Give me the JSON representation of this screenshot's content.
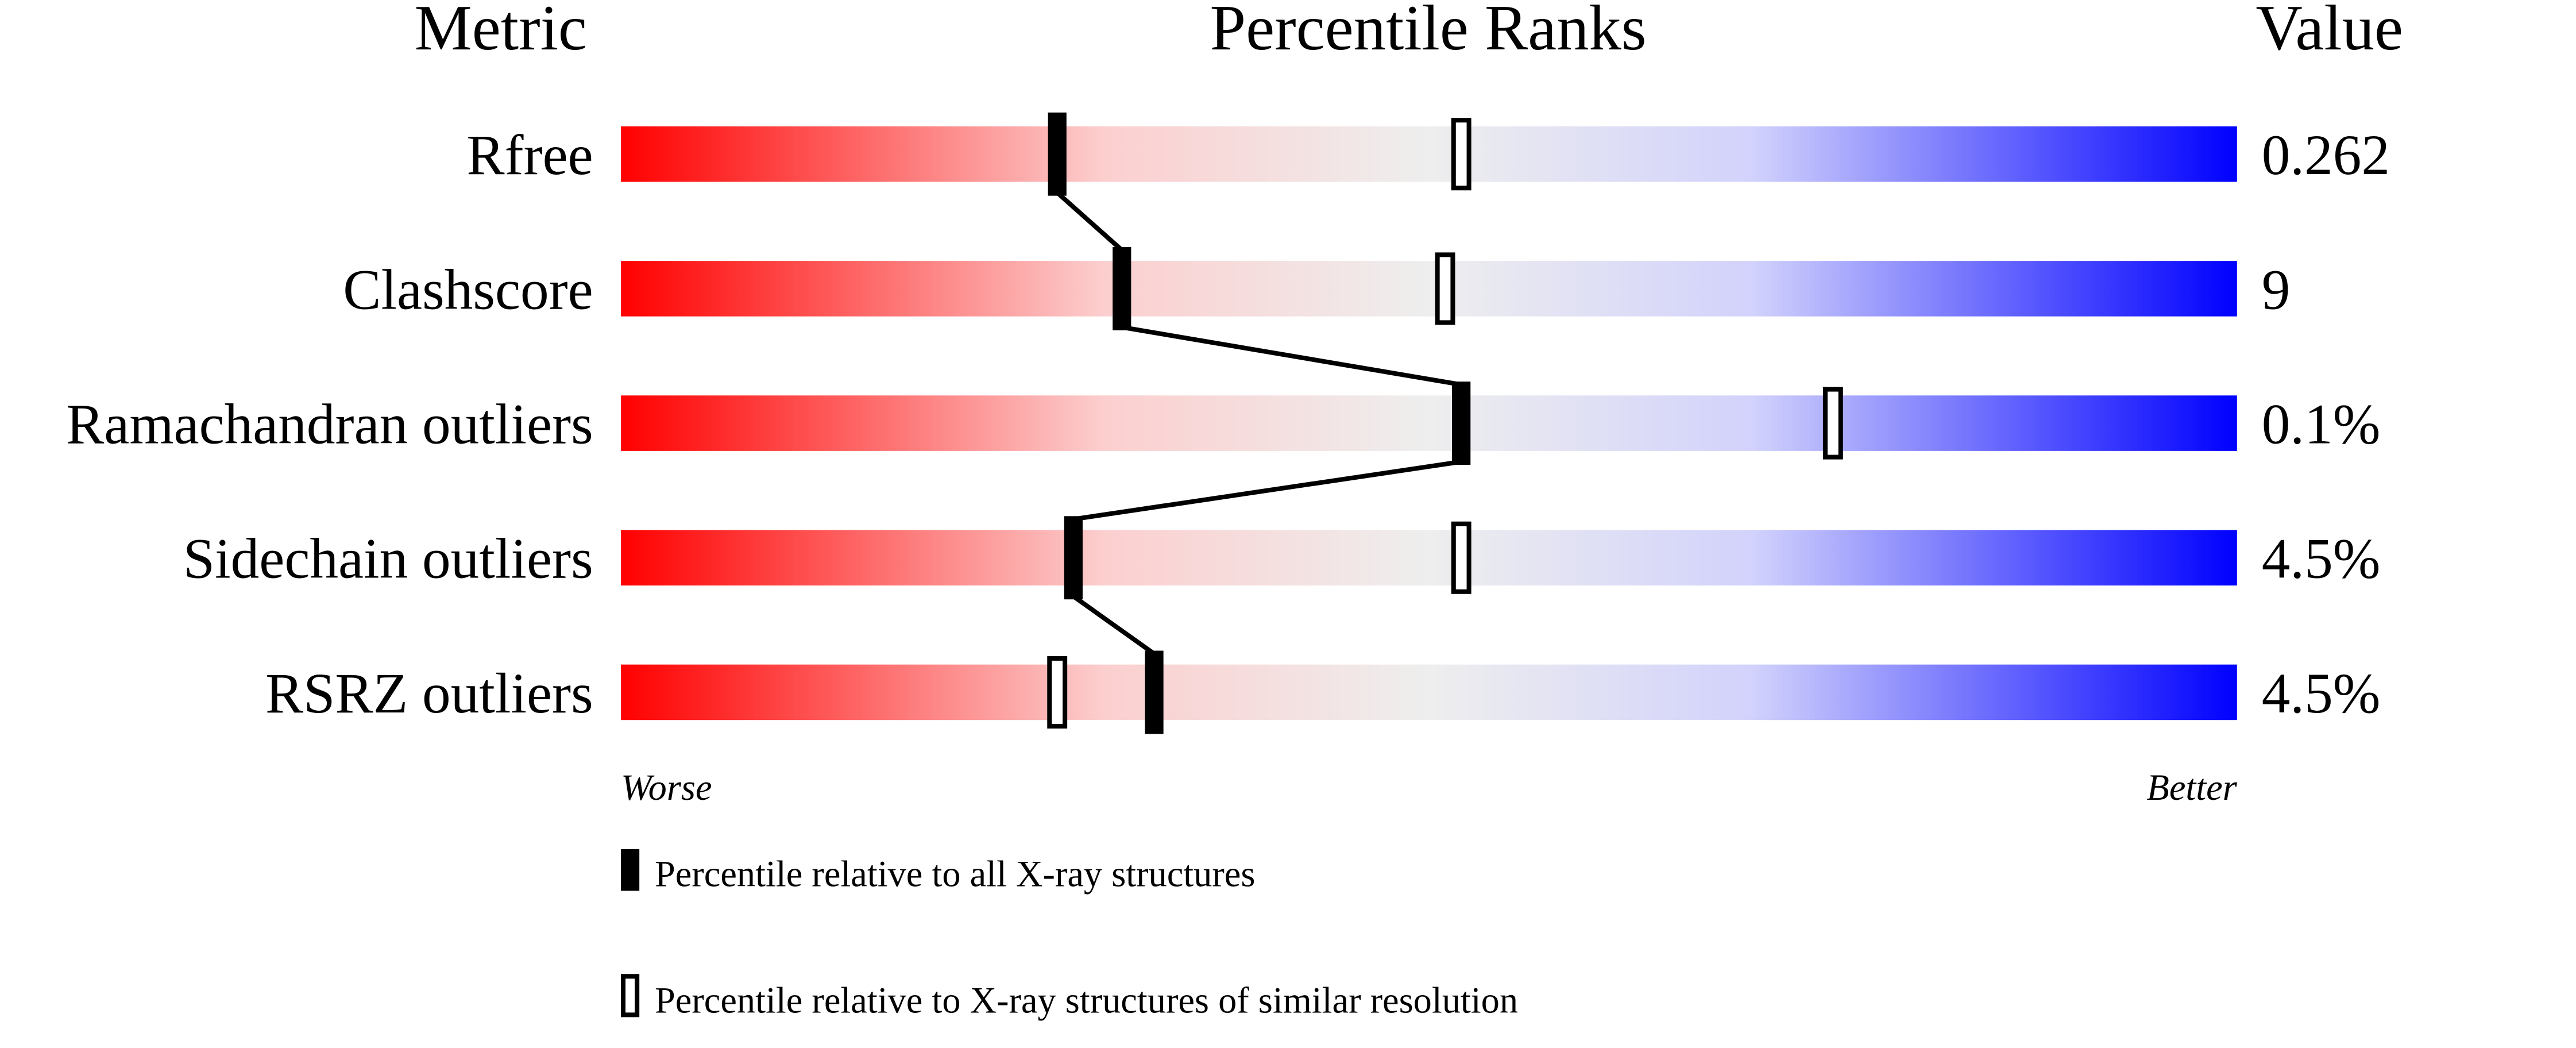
{
  "chart_data": {
    "type": "percentile-slider",
    "headers": {
      "metric": "Metric",
      "ranks": "Percentile Ranks",
      "value": "Value"
    },
    "xlim": [
      0,
      100
    ],
    "axis_labels": {
      "left": "Worse",
      "right": "Better"
    },
    "rows": [
      {
        "metric": "Rfree",
        "value": "0.262",
        "percentile_all": 27,
        "percentile_similar": 52
      },
      {
        "metric": "Clashscore",
        "value": "9",
        "percentile_all": 31,
        "percentile_similar": 51
      },
      {
        "metric": "Ramachandran outliers",
        "value": "0.1%",
        "percentile_all": 52,
        "percentile_similar": 75
      },
      {
        "metric": "Sidechain outliers",
        "value": "4.5%",
        "percentile_all": 28,
        "percentile_similar": 52
      },
      {
        "metric": "RSRZ outliers",
        "value": "4.5%",
        "percentile_all": 33,
        "percentile_similar": 27
      }
    ],
    "legend": {
      "all": "Percentile relative to all X-ray structures",
      "similar": "Percentile relative to X-ray structures of similar resolution"
    },
    "colors": {
      "worse": "#ff0000",
      "middle": "#eeeeee",
      "better": "#0000ff",
      "marker": "#000000"
    }
  }
}
